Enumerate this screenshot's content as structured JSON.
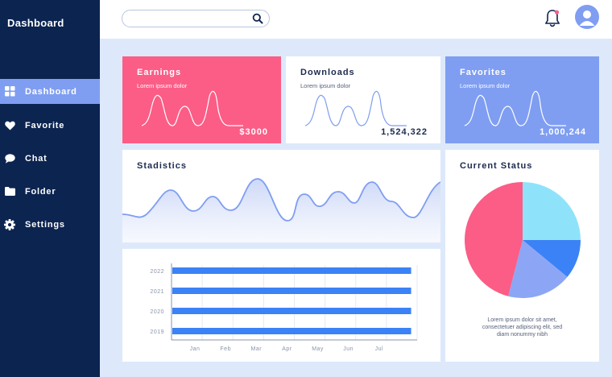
{
  "sidebar": {
    "title": "Dashboard",
    "items": [
      {
        "label": "Dashboard",
        "icon": "grid-icon",
        "active": true
      },
      {
        "label": "Favorite",
        "icon": "heart-icon",
        "active": false
      },
      {
        "label": "Chat",
        "icon": "chat-bubble-icon",
        "active": false
      },
      {
        "label": "Folder",
        "icon": "folder-icon",
        "active": false
      },
      {
        "label": "Settings",
        "icon": "gear-icon",
        "active": false
      }
    ]
  },
  "topbar": {
    "search_placeholder": "",
    "search_value": ""
  },
  "cards": {
    "earnings": {
      "title": "Earnings",
      "subtitle": "Lorem ipsum dolor",
      "value": "$3000"
    },
    "downloads": {
      "title": "Downloads",
      "subtitle": "Lorem ipsum dolor",
      "value": "1,524,322"
    },
    "favorites": {
      "title": "Favorites",
      "subtitle": "Lorem ipsum dolor",
      "value": "1,000,244"
    }
  },
  "statistics": {
    "title": "Stadistics"
  },
  "status": {
    "title": "Current Status",
    "caption_lines": [
      "Lorem ipsum dolor sit amet,",
      "consectetuer adipiscing elit, sed",
      "diam nonummy nibh"
    ]
  },
  "colors": {
    "sidebar": "#0c2450",
    "accent_blue": "#7f9ef2",
    "pink": "#fb5d86",
    "bar_blue": "#3b82f6",
    "light_blue": "#8ee3fb",
    "background": "#dde9fb"
  },
  "chart_data": [
    {
      "type": "pie",
      "title": "",
      "slices": [
        {
          "label": "",
          "value": 25,
          "color": "#8ee3fb"
        },
        {
          "label": "",
          "value": 11,
          "color": "#3b82f6"
        },
        {
          "label": "",
          "value": 18,
          "color": "#8ca6f5"
        },
        {
          "label": "",
          "value": 46,
          "color": "#fb5d86"
        }
      ]
    },
    {
      "type": "bar",
      "orientation": "horizontal",
      "categories": [
        "2022",
        "2021",
        "2020",
        "2019"
      ],
      "x_tick_labels": [
        "Jan",
        "Feb",
        "Mar",
        "Apr",
        "May",
        "Jun",
        "Jul"
      ],
      "values": [
        8,
        8,
        8,
        8
      ],
      "xlim": [
        0,
        8.2
      ],
      "grid": true
    }
  ]
}
